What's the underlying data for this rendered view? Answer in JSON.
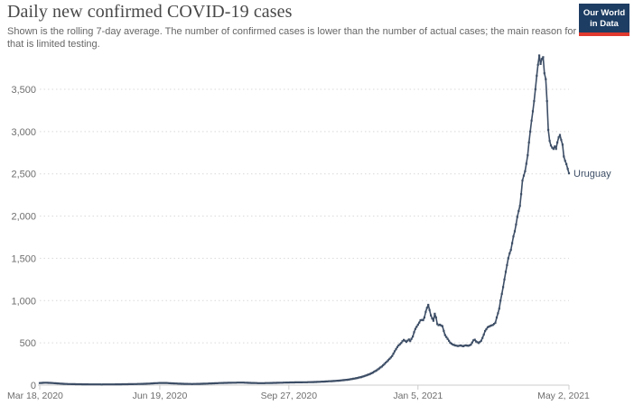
{
  "header": {
    "title": "Daily new confirmed COVID-19 cases",
    "subtitle_lines": [
      "Shown is the rolling 7-day average. The number of confirmed cases is lower than the number of actual cases; the main reason for",
      "that is limited testing."
    ]
  },
  "logo": {
    "line1": "Our World",
    "line2": "in Data",
    "bg_color": "#1d3d63",
    "bar_color": "#e0392e",
    "text_color": "#ffffff"
  },
  "chart_data": {
    "type": "line",
    "title": "Daily new confirmed COVID-19 cases",
    "entity": "Uruguay",
    "line_color": "#3d4e66",
    "grid": "horizontal-dotted",
    "legend_position": "end-of-line-label",
    "x_start_date": "Mar 18, 2020",
    "x_end_date": "May 2, 2021",
    "xlim_days": [
      0,
      410
    ],
    "ylim": [
      0,
      3900
    ],
    "x_ticks": [
      {
        "label": "Mar 18, 2020",
        "day": 0
      },
      {
        "label": "Jun 19, 2020",
        "day": 93
      },
      {
        "label": "Sep 27, 2020",
        "day": 193
      },
      {
        "label": "Jan 5, 2021",
        "day": 293
      },
      {
        "label": "May 2, 2021",
        "day": 410
      }
    ],
    "y_ticks": [
      {
        "label": "0",
        "value": 0
      },
      {
        "label": "500",
        "value": 500
      },
      {
        "label": "1,000",
        "value": 1000
      },
      {
        "label": "1,500",
        "value": 1500
      },
      {
        "label": "2,000",
        "value": 2000
      },
      {
        "label": "2,500",
        "value": 2500
      },
      {
        "label": "3,000",
        "value": 3000
      },
      {
        "label": "3,500",
        "value": 3500
      }
    ],
    "series_anchor_points_day_value": [
      [
        0,
        25
      ],
      [
        4,
        29
      ],
      [
        9,
        26
      ],
      [
        14,
        20
      ],
      [
        20,
        14
      ],
      [
        28,
        11
      ],
      [
        38,
        9
      ],
      [
        48,
        8
      ],
      [
        58,
        9
      ],
      [
        68,
        11
      ],
      [
        78,
        14
      ],
      [
        86,
        19
      ],
      [
        92,
        25
      ],
      [
        97,
        26
      ],
      [
        103,
        21
      ],
      [
        110,
        16
      ],
      [
        118,
        13
      ],
      [
        126,
        16
      ],
      [
        134,
        21
      ],
      [
        142,
        26
      ],
      [
        150,
        29
      ],
      [
        157,
        30
      ],
      [
        164,
        26
      ],
      [
        171,
        23
      ],
      [
        178,
        25
      ],
      [
        185,
        28
      ],
      [
        192,
        31
      ],
      [
        199,
        33
      ],
      [
        206,
        34
      ],
      [
        213,
        37
      ],
      [
        220,
        42
      ],
      [
        227,
        48
      ],
      [
        233,
        55
      ],
      [
        239,
        65
      ],
      [
        244,
        78
      ],
      [
        249,
        95
      ],
      [
        253,
        115
      ],
      [
        257,
        140
      ],
      [
        261,
        175
      ],
      [
        265,
        220
      ],
      [
        268,
        265
      ],
      [
        271,
        310
      ],
      [
        273,
        345
      ],
      [
        275,
        400
      ],
      [
        277,
        450
      ],
      [
        278,
        470
      ],
      [
        280,
        498
      ],
      [
        281,
        520
      ],
      [
        282,
        535
      ],
      [
        284,
        512
      ],
      [
        286,
        540
      ],
      [
        287,
        522
      ],
      [
        288,
        548
      ],
      [
        289,
        575
      ],
      [
        290,
        625
      ],
      [
        291,
        665
      ],
      [
        292,
        690
      ],
      [
        293,
        715
      ],
      [
        294,
        740
      ],
      [
        295,
        768
      ],
      [
        296,
        772
      ],
      [
        297,
        768
      ],
      [
        298,
        800
      ],
      [
        299,
        868
      ],
      [
        300,
        915
      ],
      [
        301,
        950
      ],
      [
        302,
        890
      ],
      [
        303,
        825
      ],
      [
        304,
        790
      ],
      [
        305,
        762
      ],
      [
        306,
        845
      ],
      [
        307,
        800
      ],
      [
        308,
        722
      ],
      [
        309,
        710
      ],
      [
        310,
        715
      ],
      [
        311,
        705
      ],
      [
        312,
        698
      ],
      [
        313,
        640
      ],
      [
        314,
        592
      ],
      [
        316,
        548
      ],
      [
        318,
        502
      ],
      [
        320,
        480
      ],
      [
        322,
        470
      ],
      [
        324,
        462
      ],
      [
        326,
        470
      ],
      [
        328,
        460
      ],
      [
        330,
        472
      ],
      [
        332,
        465
      ],
      [
        334,
        478
      ],
      [
        336,
        530
      ],
      [
        337,
        538
      ],
      [
        338,
        518
      ],
      [
        340,
        498
      ],
      [
        342,
        525
      ],
      [
        343,
        558
      ],
      [
        344,
        598
      ],
      [
        345,
        640
      ],
      [
        346,
        662
      ],
      [
        347,
        685
      ],
      [
        349,
        700
      ],
      [
        351,
        712
      ],
      [
        353,
        738
      ],
      [
        354,
        800
      ],
      [
        355,
        850
      ],
      [
        356,
        905
      ],
      [
        357,
        1000
      ],
      [
        358,
        1080
      ],
      [
        359,
        1160
      ],
      [
        360,
        1250
      ],
      [
        361,
        1340
      ],
      [
        362,
        1420
      ],
      [
        363,
        1500
      ],
      [
        364,
        1560
      ],
      [
        365,
        1600
      ],
      [
        366,
        1680
      ],
      [
        367,
        1760
      ],
      [
        368,
        1820
      ],
      [
        369,
        1900
      ],
      [
        370,
        1990
      ],
      [
        371,
        2060
      ],
      [
        372,
        2120
      ],
      [
        373,
        2260
      ],
      [
        374,
        2420
      ],
      [
        375,
        2480
      ],
      [
        376,
        2530
      ],
      [
        377,
        2620
      ],
      [
        378,
        2720
      ],
      [
        379,
        2870
      ],
      [
        380,
        3000
      ],
      [
        381,
        3130
      ],
      [
        382,
        3240
      ],
      [
        383,
        3360
      ],
      [
        384,
        3500
      ],
      [
        385,
        3660
      ],
      [
        386,
        3790
      ],
      [
        387,
        3900
      ],
      [
        388,
        3800
      ],
      [
        389,
        3860
      ],
      [
        390,
        3880
      ],
      [
        391,
        3690
      ],
      [
        392,
        3620
      ],
      [
        393,
        3360
      ],
      [
        394,
        3020
      ],
      [
        395,
        2890
      ],
      [
        396,
        2835
      ],
      [
        397,
        2810
      ],
      [
        398,
        2795
      ],
      [
        399,
        2825
      ],
      [
        400,
        2795
      ],
      [
        401,
        2870
      ],
      [
        402,
        2930
      ],
      [
        403,
        2960
      ],
      [
        404,
        2900
      ],
      [
        405,
        2845
      ],
      [
        406,
        2705
      ],
      [
        407,
        2655
      ],
      [
        408,
        2615
      ],
      [
        409,
        2560
      ],
      [
        410,
        2505
      ]
    ]
  }
}
